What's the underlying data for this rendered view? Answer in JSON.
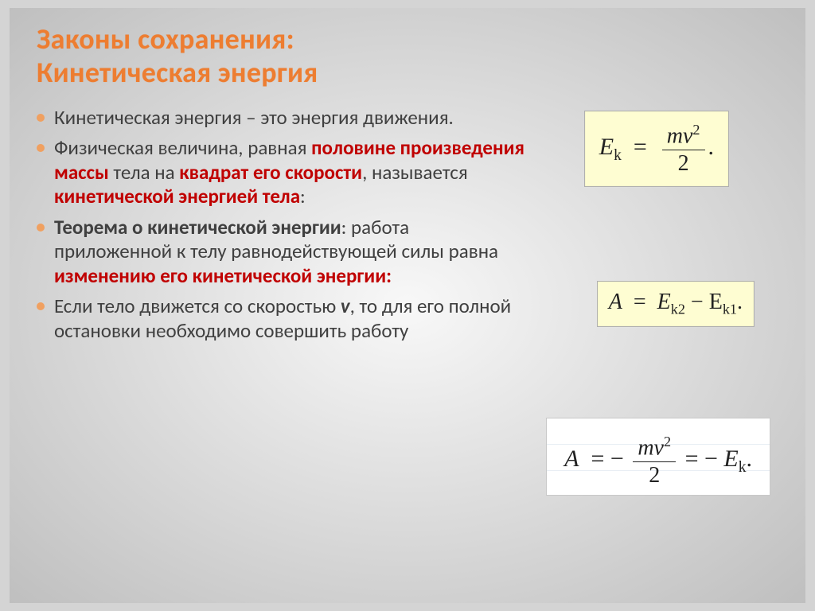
{
  "slide": {
    "title_line1": "Законы сохранения:",
    "title_line2": "Кинетическая энергия",
    "bullets": {
      "b1_a": "Кинетическая энергия – это энергия движения.",
      "b2_a": "Физическая величина, равная ",
      "b2_red1": "половине произведения массы",
      "b2_b": " тела на ",
      "b2_red2": "квадрат его скорости",
      "b2_c": ", называется ",
      "b2_red3": "кинетической энергией тела",
      "b2_d": ":",
      "b3_bold": "Теорема о кинетической энергии",
      "b3_a": ": работа приложенной к телу равнодействующей силы равна ",
      "b3_red": "изменению его кинетической энергии:",
      "b4_a": "Если тело движется со скоростью ",
      "b4_v": "v",
      "b4_b": ", то для его полной остановки необходимо совершить работу"
    },
    "formulas": {
      "f1": {
        "lhs": "E",
        "lhs_sub": "k",
        "num": "mv",
        "num_sup": "2",
        "den": "2"
      },
      "f2": {
        "lhs": "A",
        "r1": "E",
        "r1_sub": "k2",
        "minus": " − ",
        "r2": "E",
        "r2_sub": "k1",
        "end": "."
      },
      "f3": {
        "lhs": "A",
        "neg": " − ",
        "num": "mv",
        "num_sup": "2",
        "den": "2",
        "eq2": " = − ",
        "r": "E",
        "r_sub": "k",
        "end": "."
      }
    },
    "style": {
      "accent_color": "#ed7d31",
      "red_color": "#c00000",
      "formula_bg_yellow": "#fefdd2",
      "formula_bg_white": "#ffffff",
      "title_fontsize_pt": 28,
      "body_fontsize_pt": 19,
      "formula_fontfamily": "Times New Roman",
      "body_fontfamily": "Calibri",
      "background_inner": "#f8f8f8",
      "background_outer": "#bfbfbf"
    }
  }
}
